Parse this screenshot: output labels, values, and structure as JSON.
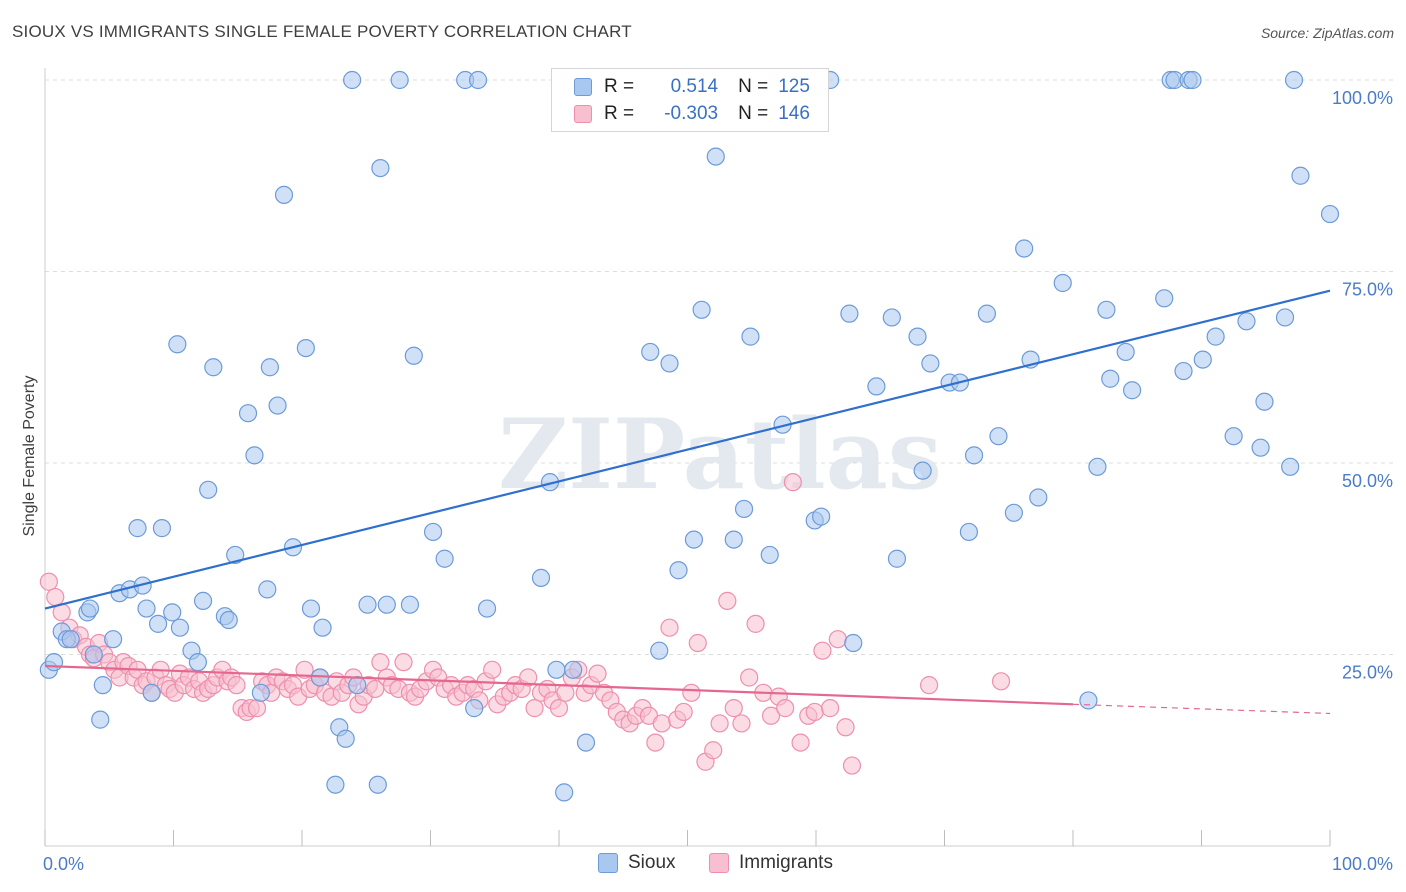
{
  "header": {
    "title": "SIOUX VS IMMIGRANTS SINGLE FEMALE POVERTY CORRELATION CHART",
    "source": "Source: ZipAtlas.com"
  },
  "legend": {
    "rows": [
      {
        "r_label": "R =",
        "r_value": "0.514",
        "n_label": "N =",
        "n_value": "125",
        "color": "#8ab4ec"
      },
      {
        "r_label": "R =",
        "r_value": "-0.303",
        "n_label": "N =",
        "n_value": "146",
        "color": "#f4a6bf"
      }
    ]
  },
  "bottom_legend": {
    "items": [
      {
        "label": "Sioux",
        "color": "#8ab4ec"
      },
      {
        "label": "Immigrants",
        "color": "#f4a6bf"
      }
    ]
  },
  "colors": {
    "sioux_fill": "#a9c8f0",
    "sioux_stroke": "#6c9bd8",
    "sioux_line": "#2f6fce",
    "immigrants_fill": "#f7bfd0",
    "immigrants_stroke": "#ee8fae",
    "immigrants_line": "#e5678f",
    "tick_label": "#4a7cc9",
    "grid": "#dddddd"
  },
  "chart_data": {
    "type": "scatter",
    "xlabel": "",
    "ylabel": "Single Female Poverty",
    "xlim": [
      0,
      100
    ],
    "ylim": [
      0,
      100
    ],
    "x_tick_labels": [
      {
        "value": 0,
        "label": "0.0%"
      },
      {
        "value": 100,
        "label": "100.0%"
      }
    ],
    "y_tick_labels": [
      {
        "value": 25,
        "label": "25.0%"
      },
      {
        "value": 50,
        "label": "50.0%"
      },
      {
        "value": 75,
        "label": "75.0%"
      },
      {
        "value": 100,
        "label": "100.0%"
      }
    ],
    "grid": true,
    "watermark": "ZIPatlas",
    "series": [
      {
        "name": "Sioux",
        "trend": {
          "x": [
            0,
            100
          ],
          "y": [
            31,
            72.5
          ]
        },
        "points": [
          [
            0.3,
            23
          ],
          [
            0.7,
            24
          ],
          [
            1.3,
            28
          ],
          [
            1.7,
            27
          ],
          [
            2,
            27
          ],
          [
            3.3,
            30.5
          ],
          [
            3.5,
            31
          ],
          [
            3.8,
            25
          ],
          [
            4.5,
            21
          ],
          [
            4.3,
            16.5
          ],
          [
            5.3,
            27
          ],
          [
            5.8,
            33
          ],
          [
            6.6,
            33.5
          ],
          [
            7.2,
            41.5
          ],
          [
            7.6,
            34
          ],
          [
            7.9,
            31
          ],
          [
            8.3,
            20
          ],
          [
            8.8,
            29
          ],
          [
            9.1,
            41.5
          ],
          [
            9.9,
            30.5
          ],
          [
            10.3,
            65.5
          ],
          [
            10.5,
            28.5
          ],
          [
            11.4,
            25.5
          ],
          [
            11.9,
            24
          ],
          [
            12.3,
            32
          ],
          [
            12.7,
            46.5
          ],
          [
            13.1,
            62.5
          ],
          [
            14,
            30
          ],
          [
            14.3,
            29.5
          ],
          [
            14.8,
            38
          ],
          [
            15.8,
            56.5
          ],
          [
            16.3,
            51
          ],
          [
            16.8,
            20
          ],
          [
            17.3,
            33.5
          ],
          [
            17.5,
            62.5
          ],
          [
            18.1,
            57.5
          ],
          [
            18.6,
            85
          ],
          [
            19.3,
            39
          ],
          [
            20.3,
            65
          ],
          [
            20.7,
            31
          ],
          [
            21.4,
            22
          ],
          [
            21.6,
            28.5
          ],
          [
            22.6,
            8
          ],
          [
            22.9,
            15.5
          ],
          [
            23.4,
            14
          ],
          [
            23.9,
            100
          ],
          [
            24.3,
            21
          ],
          [
            25.1,
            31.5
          ],
          [
            25.9,
            8
          ],
          [
            26.1,
            88.5
          ],
          [
            26.6,
            31.5
          ],
          [
            27.6,
            100
          ],
          [
            28.4,
            31.5
          ],
          [
            28.7,
            64
          ],
          [
            30.2,
            41
          ],
          [
            31.1,
            37.5
          ],
          [
            32.7,
            100
          ],
          [
            33.4,
            18
          ],
          [
            33.7,
            100
          ],
          [
            34.4,
            31
          ],
          [
            38.6,
            35
          ],
          [
            39.3,
            47.5
          ],
          [
            39.8,
            23
          ],
          [
            40.4,
            7
          ],
          [
            41.1,
            23
          ],
          [
            42.1,
            13.5
          ],
          [
            47.1,
            64.5
          ],
          [
            47.8,
            25.5
          ],
          [
            48.6,
            63
          ],
          [
            49.3,
            36
          ],
          [
            50.5,
            40
          ],
          [
            51.1,
            70
          ],
          [
            52.2,
            90
          ],
          [
            53.6,
            40
          ],
          [
            54.4,
            44
          ],
          [
            54.9,
            66.5
          ],
          [
            56.4,
            38
          ],
          [
            57.4,
            55
          ],
          [
            59.9,
            100
          ],
          [
            59.9,
            42.5
          ],
          [
            60.4,
            43
          ],
          [
            61.1,
            100
          ],
          [
            62.9,
            26.5
          ],
          [
            62.6,
            69.5
          ],
          [
            64.7,
            60
          ],
          [
            65.9,
            69
          ],
          [
            66.3,
            37.5
          ],
          [
            67.9,
            66.5
          ],
          [
            68.3,
            49
          ],
          [
            68.9,
            63
          ],
          [
            70.4,
            60.5
          ],
          [
            71.2,
            60.5
          ],
          [
            71.9,
            41
          ],
          [
            72.3,
            51
          ],
          [
            73.3,
            69.5
          ],
          [
            74.2,
            53.5
          ],
          [
            75.4,
            43.5
          ],
          [
            76.2,
            78
          ],
          [
            76.7,
            63.5
          ],
          [
            77.3,
            45.5
          ],
          [
            79.2,
            73.5
          ],
          [
            81.2,
            19
          ],
          [
            81.9,
            49.5
          ],
          [
            82.6,
            70
          ],
          [
            82.9,
            61
          ],
          [
            84.1,
            64.5
          ],
          [
            84.6,
            59.5
          ],
          [
            87.1,
            71.5
          ],
          [
            87.6,
            100
          ],
          [
            87.9,
            100
          ],
          [
            88.6,
            62
          ],
          [
            89,
            100
          ],
          [
            89.3,
            100
          ],
          [
            90.1,
            63.5
          ],
          [
            91.1,
            66.5
          ],
          [
            92.5,
            53.5
          ],
          [
            93.5,
            68.5
          ],
          [
            94.6,
            52
          ],
          [
            94.9,
            58
          ],
          [
            96.5,
            69
          ],
          [
            96.9,
            49.5
          ],
          [
            97.2,
            100
          ],
          [
            97.7,
            87.5
          ],
          [
            100,
            82.5
          ]
        ]
      },
      {
        "name": "Immigrants",
        "trend": {
          "x": [
            0,
            80
          ],
          "y": [
            23.5,
            18.5
          ]
        },
        "trend_dashed": {
          "x": [
            80,
            100
          ],
          "y": [
            18.5,
            17.3
          ]
        },
        "points": [
          [
            0.3,
            34.5
          ],
          [
            0.8,
            32.5
          ],
          [
            1.3,
            30.5
          ],
          [
            1.9,
            28.5
          ],
          [
            2.2,
            27
          ],
          [
            2.7,
            27.5
          ],
          [
            3.2,
            26
          ],
          [
            3.5,
            25
          ],
          [
            3.8,
            24.5
          ],
          [
            4.2,
            26.5
          ],
          [
            4.6,
            25
          ],
          [
            5,
            24
          ],
          [
            5.4,
            23
          ],
          [
            5.8,
            22
          ],
          [
            6.1,
            24
          ],
          [
            6.5,
            23.5
          ],
          [
            6.9,
            22
          ],
          [
            7.2,
            23
          ],
          [
            7.6,
            21
          ],
          [
            7.9,
            21.5
          ],
          [
            8.3,
            20
          ],
          [
            8.6,
            22
          ],
          [
            9,
            23
          ],
          [
            9.4,
            21
          ],
          [
            9.7,
            20.5
          ],
          [
            10.1,
            20
          ],
          [
            10.5,
            22.5
          ],
          [
            10.8,
            21
          ],
          [
            11.2,
            22
          ],
          [
            11.6,
            20.5
          ],
          [
            12,
            21.5
          ],
          [
            12.3,
            20
          ],
          [
            12.7,
            20.5
          ],
          [
            13.1,
            21
          ],
          [
            13.4,
            22
          ],
          [
            13.8,
            23
          ],
          [
            14.2,
            21.5
          ],
          [
            14.5,
            22
          ],
          [
            14.9,
            21
          ],
          [
            15.3,
            18
          ],
          [
            15.7,
            17.5
          ],
          [
            16,
            18
          ],
          [
            16.5,
            18
          ],
          [
            16.9,
            21.5
          ],
          [
            17.3,
            21
          ],
          [
            17.6,
            20
          ],
          [
            18,
            22
          ],
          [
            18.5,
            21.5
          ],
          [
            18.9,
            20.5
          ],
          [
            19.3,
            21
          ],
          [
            19.7,
            19.5
          ],
          [
            20.2,
            23
          ],
          [
            20.6,
            20.5
          ],
          [
            21,
            21
          ],
          [
            21.4,
            22
          ],
          [
            21.8,
            20
          ],
          [
            22.3,
            19.5
          ],
          [
            22.7,
            21.5
          ],
          [
            23.1,
            20
          ],
          [
            23.6,
            21
          ],
          [
            24,
            22
          ],
          [
            24.4,
            18.5
          ],
          [
            24.8,
            19.5
          ],
          [
            25.2,
            21
          ],
          [
            25.7,
            20.5
          ],
          [
            26.1,
            24
          ],
          [
            26.6,
            22
          ],
          [
            27,
            21
          ],
          [
            27.5,
            20.5
          ],
          [
            27.9,
            24
          ],
          [
            28.4,
            20
          ],
          [
            28.8,
            19.5
          ],
          [
            29.2,
            20.5
          ],
          [
            29.7,
            21.5
          ],
          [
            30.2,
            23
          ],
          [
            30.6,
            22
          ],
          [
            31.1,
            20.5
          ],
          [
            31.6,
            21
          ],
          [
            32,
            19.5
          ],
          [
            32.5,
            20
          ],
          [
            32.9,
            21
          ],
          [
            33.4,
            20.5
          ],
          [
            33.8,
            19
          ],
          [
            34.3,
            21.5
          ],
          [
            34.8,
            23
          ],
          [
            35.2,
            18.5
          ],
          [
            35.7,
            19.5
          ],
          [
            36.2,
            20
          ],
          [
            36.6,
            21
          ],
          [
            37.1,
            20.5
          ],
          [
            37.6,
            22
          ],
          [
            38.1,
            18
          ],
          [
            38.6,
            20
          ],
          [
            39.1,
            20.5
          ],
          [
            39.5,
            19
          ],
          [
            40,
            18
          ],
          [
            40.5,
            20
          ],
          [
            41,
            22
          ],
          [
            41.5,
            23
          ],
          [
            42,
            20
          ],
          [
            42.5,
            21
          ],
          [
            43,
            22.5
          ],
          [
            43.5,
            20
          ],
          [
            44,
            19
          ],
          [
            44.5,
            17.5
          ],
          [
            45,
            16.5
          ],
          [
            45.5,
            16
          ],
          [
            46,
            17
          ],
          [
            46.5,
            18
          ],
          [
            47,
            17
          ],
          [
            47.5,
            13.5
          ],
          [
            48,
            16
          ],
          [
            48.6,
            28.5
          ],
          [
            49.2,
            16.5
          ],
          [
            49.7,
            17.5
          ],
          [
            50.3,
            20
          ],
          [
            50.8,
            26.5
          ],
          [
            51.4,
            11
          ],
          [
            52,
            12.5
          ],
          [
            52.5,
            16
          ],
          [
            53.1,
            32
          ],
          [
            53.6,
            18
          ],
          [
            54.2,
            16
          ],
          [
            54.8,
            22
          ],
          [
            55.3,
            29
          ],
          [
            55.9,
            20
          ],
          [
            56.5,
            17
          ],
          [
            57.1,
            19.5
          ],
          [
            57.6,
            18
          ],
          [
            58.2,
            47.5
          ],
          [
            58.8,
            13.5
          ],
          [
            59.4,
            17
          ],
          [
            59.9,
            17.5
          ],
          [
            60.5,
            25.5
          ],
          [
            61.1,
            18
          ],
          [
            61.7,
            27
          ],
          [
            62.3,
            15.5
          ],
          [
            62.8,
            10.5
          ],
          [
            68.8,
            21
          ],
          [
            74.4,
            21.5
          ]
        ]
      }
    ]
  }
}
